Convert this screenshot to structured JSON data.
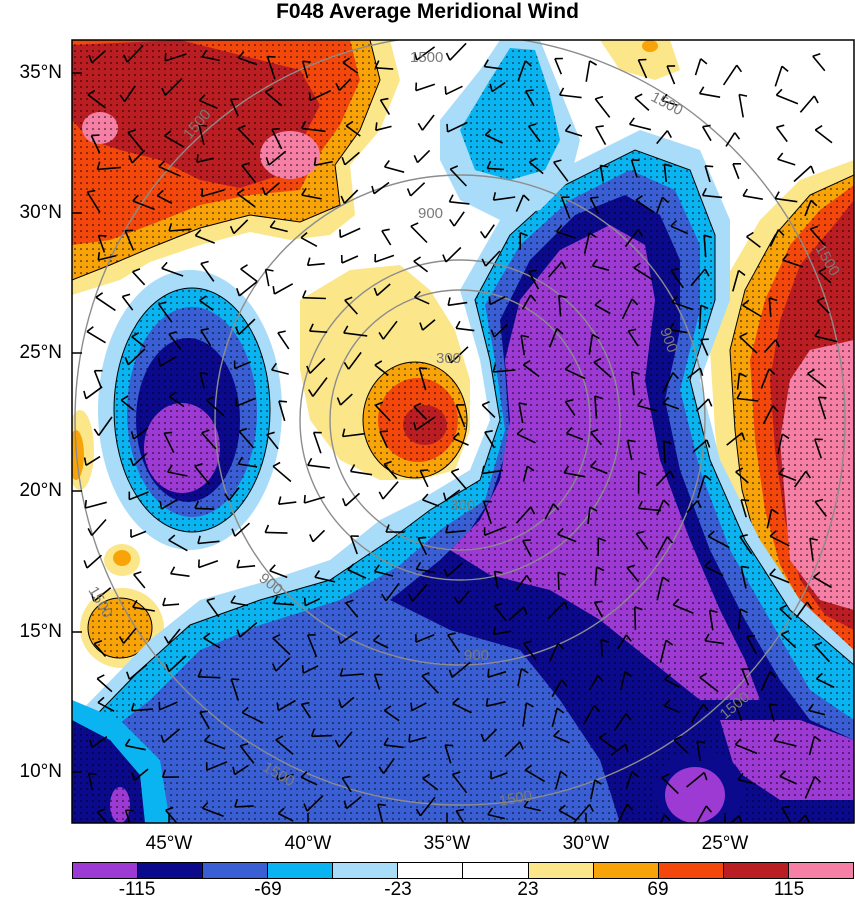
{
  "title": "F048 Average Meridional Wind",
  "map": {
    "lat_labels": [
      "35°N",
      "30°N",
      "25°N",
      "20°N",
      "15°N",
      "10°N"
    ],
    "lon_labels": [
      "45°W",
      "40°W",
      "35°W",
      "30°W",
      "25°W"
    ],
    "range_ring_labels": [
      "300",
      "300",
      "900",
      "900",
      "900",
      "900",
      "1500",
      "1500",
      "1500",
      "1500",
      "1500",
      "1500",
      "1500",
      "1500"
    ],
    "contour_field": "meridional wind",
    "features": [
      "stippling",
      "wind barbs",
      "range rings"
    ]
  },
  "colorbar": {
    "colors": [
      "#9c3ad3",
      "#0b0a8c",
      "#3a5fd4",
      "#09b4f0",
      "#a9dcf8",
      "#ffffff",
      "#ffffff",
      "#fbe68a",
      "#f8a409",
      "#f4470c",
      "#ba1e22",
      "#f57fa5"
    ],
    "labels": [
      "-115",
      "-69",
      "-23",
      "23",
      "69",
      "115"
    ]
  }
}
